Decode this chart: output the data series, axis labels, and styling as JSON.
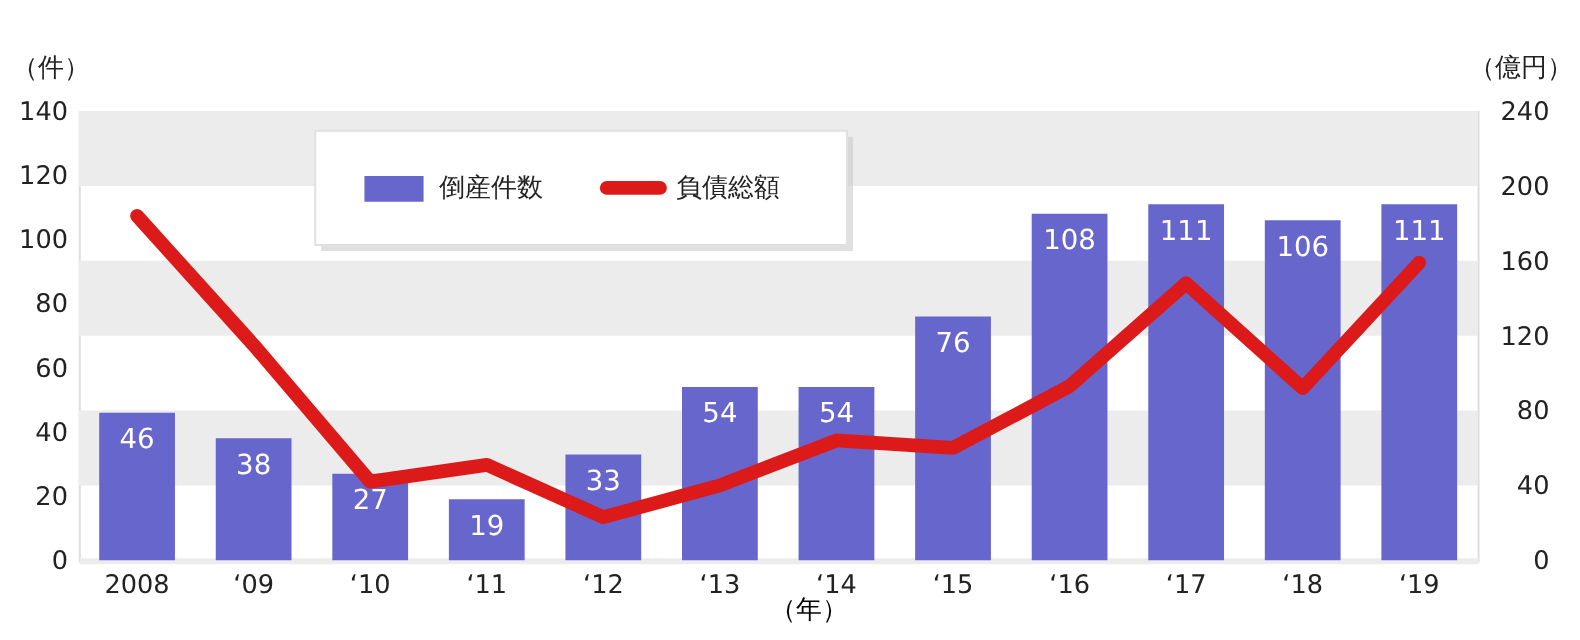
{
  "chart_data": {
    "type": "bar",
    "categories": [
      "2008",
      "‘09",
      "‘10",
      "‘11",
      "‘12",
      "‘13",
      "‘14",
      "‘15",
      "‘16",
      "‘17",
      "‘18",
      "‘19"
    ],
    "series": [
      {
        "name": "倒産件数",
        "color": "#6666cc",
        "values": [
          46,
          38,
          27,
          19,
          33,
          54,
          54,
          76,
          108,
          111,
          106,
          111
        ],
        "value_labels": [
          "46",
          "38",
          "27",
          "19",
          "33",
          "54",
          "54",
          "76",
          "108",
          "111",
          "106",
          "111"
        ]
      },
      {
        "name": "負債総額",
        "type": "line",
        "axis": "y2",
        "color": "#dd1a1a",
        "values": [
          184,
          115,
          42,
          51,
          23,
          40,
          64,
          60,
          93,
          148,
          92,
          159
        ]
      }
    ],
    "xlabel": "（年）",
    "ylabel": "（件）",
    "y2label": "（億円）",
    "ylim": [
      0,
      140
    ],
    "yticks": [
      0,
      20,
      40,
      60,
      80,
      100,
      120,
      140
    ],
    "y2lim": [
      0,
      240
    ],
    "y2ticks": [
      0,
      40,
      80,
      120,
      160,
      200,
      240
    ],
    "grid": "y2",
    "legend": "top",
    "marker": "none",
    "line_style": "solid"
  }
}
